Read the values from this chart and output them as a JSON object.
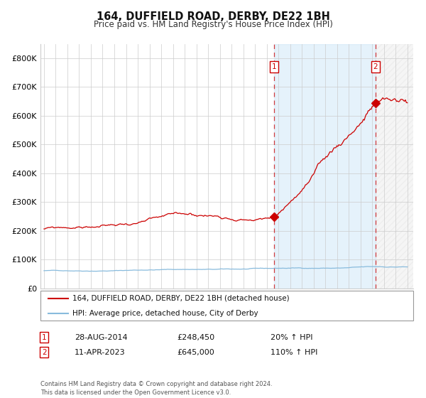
{
  "title": "164, DUFFIELD ROAD, DERBY, DE22 1BH",
  "subtitle": "Price paid vs. HM Land Registry's House Price Index (HPI)",
  "ylim": [
    0,
    850000
  ],
  "yticks": [
    0,
    100000,
    200000,
    300000,
    400000,
    500000,
    600000,
    700000,
    800000
  ],
  "ytick_labels": [
    "£0",
    "£100K",
    "£200K",
    "£300K",
    "£400K",
    "£500K",
    "£600K",
    "£700K",
    "£800K"
  ],
  "hpi_color": "#88bbdd",
  "sale_color": "#cc0000",
  "background_color": "#ffffff",
  "sale1_date": 2014.65,
  "sale1_price": 248450,
  "sale1_label": "1",
  "sale2_date": 2023.27,
  "sale2_price": 645000,
  "sale2_label": "2",
  "legend_line1": "164, DUFFIELD ROAD, DERBY, DE22 1BH (detached house)",
  "legend_line2": "HPI: Average price, detached house, City of Derby",
  "annotation1_date": "28-AUG-2014",
  "annotation1_price": "£248,450",
  "annotation1_hpi": "20% ↑ HPI",
  "annotation2_date": "11-APR-2023",
  "annotation2_price": "£645,000",
  "annotation2_hpi": "110% ↑ HPI",
  "footer": "Contains HM Land Registry data © Crown copyright and database right 2024.\nThis data is licensed under the Open Government Licence v3.0."
}
